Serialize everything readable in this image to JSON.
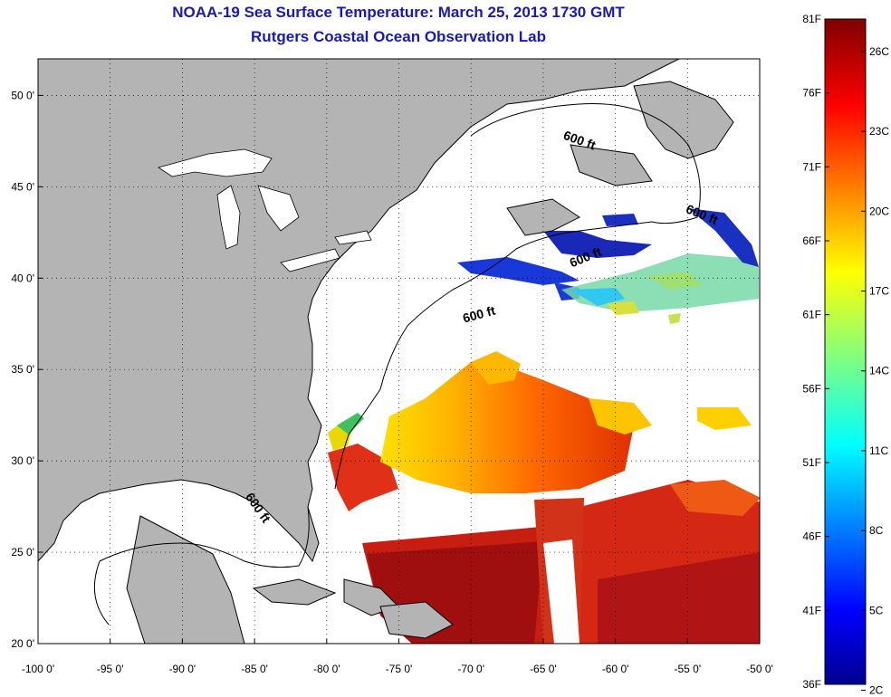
{
  "title": {
    "line1": "NOAA-19 Sea Surface Temperature:  March 25, 2013 1730 GMT",
    "line2": "Rutgers Coastal Ocean Observation Lab"
  },
  "map": {
    "lon_range": [
      -100,
      -50
    ],
    "lat_range": [
      20,
      52
    ],
    "lon_ticks": [
      "-100 0'",
      "-95 0'",
      "-90 0'",
      "-85 0'",
      "-80 0'",
      "-75 0'",
      "-70 0'",
      "-65 0'",
      "-60 0'",
      "-55 0'",
      "-50 0'"
    ],
    "lat_ticks": [
      "50 0'",
      "45 0'",
      "40 0'",
      "35 0'",
      "30 0'",
      "25 0'",
      "20 0'"
    ],
    "contour_label": "600 ft",
    "colors": {
      "land": "#b4b4b4",
      "cloud": "#ffffff",
      "coast": "#000000"
    }
  },
  "colorbar": {
    "fahrenheit": [
      "81F",
      "76F",
      "71F",
      "66F",
      "61F",
      "56F",
      "51F",
      "46F",
      "41F",
      "36F"
    ],
    "celsius": [
      "26C",
      "23C",
      "20C",
      "17C",
      "14C",
      "11C",
      "8C",
      "5C",
      "2C"
    ],
    "range_f": [
      36,
      81
    ]
  }
}
